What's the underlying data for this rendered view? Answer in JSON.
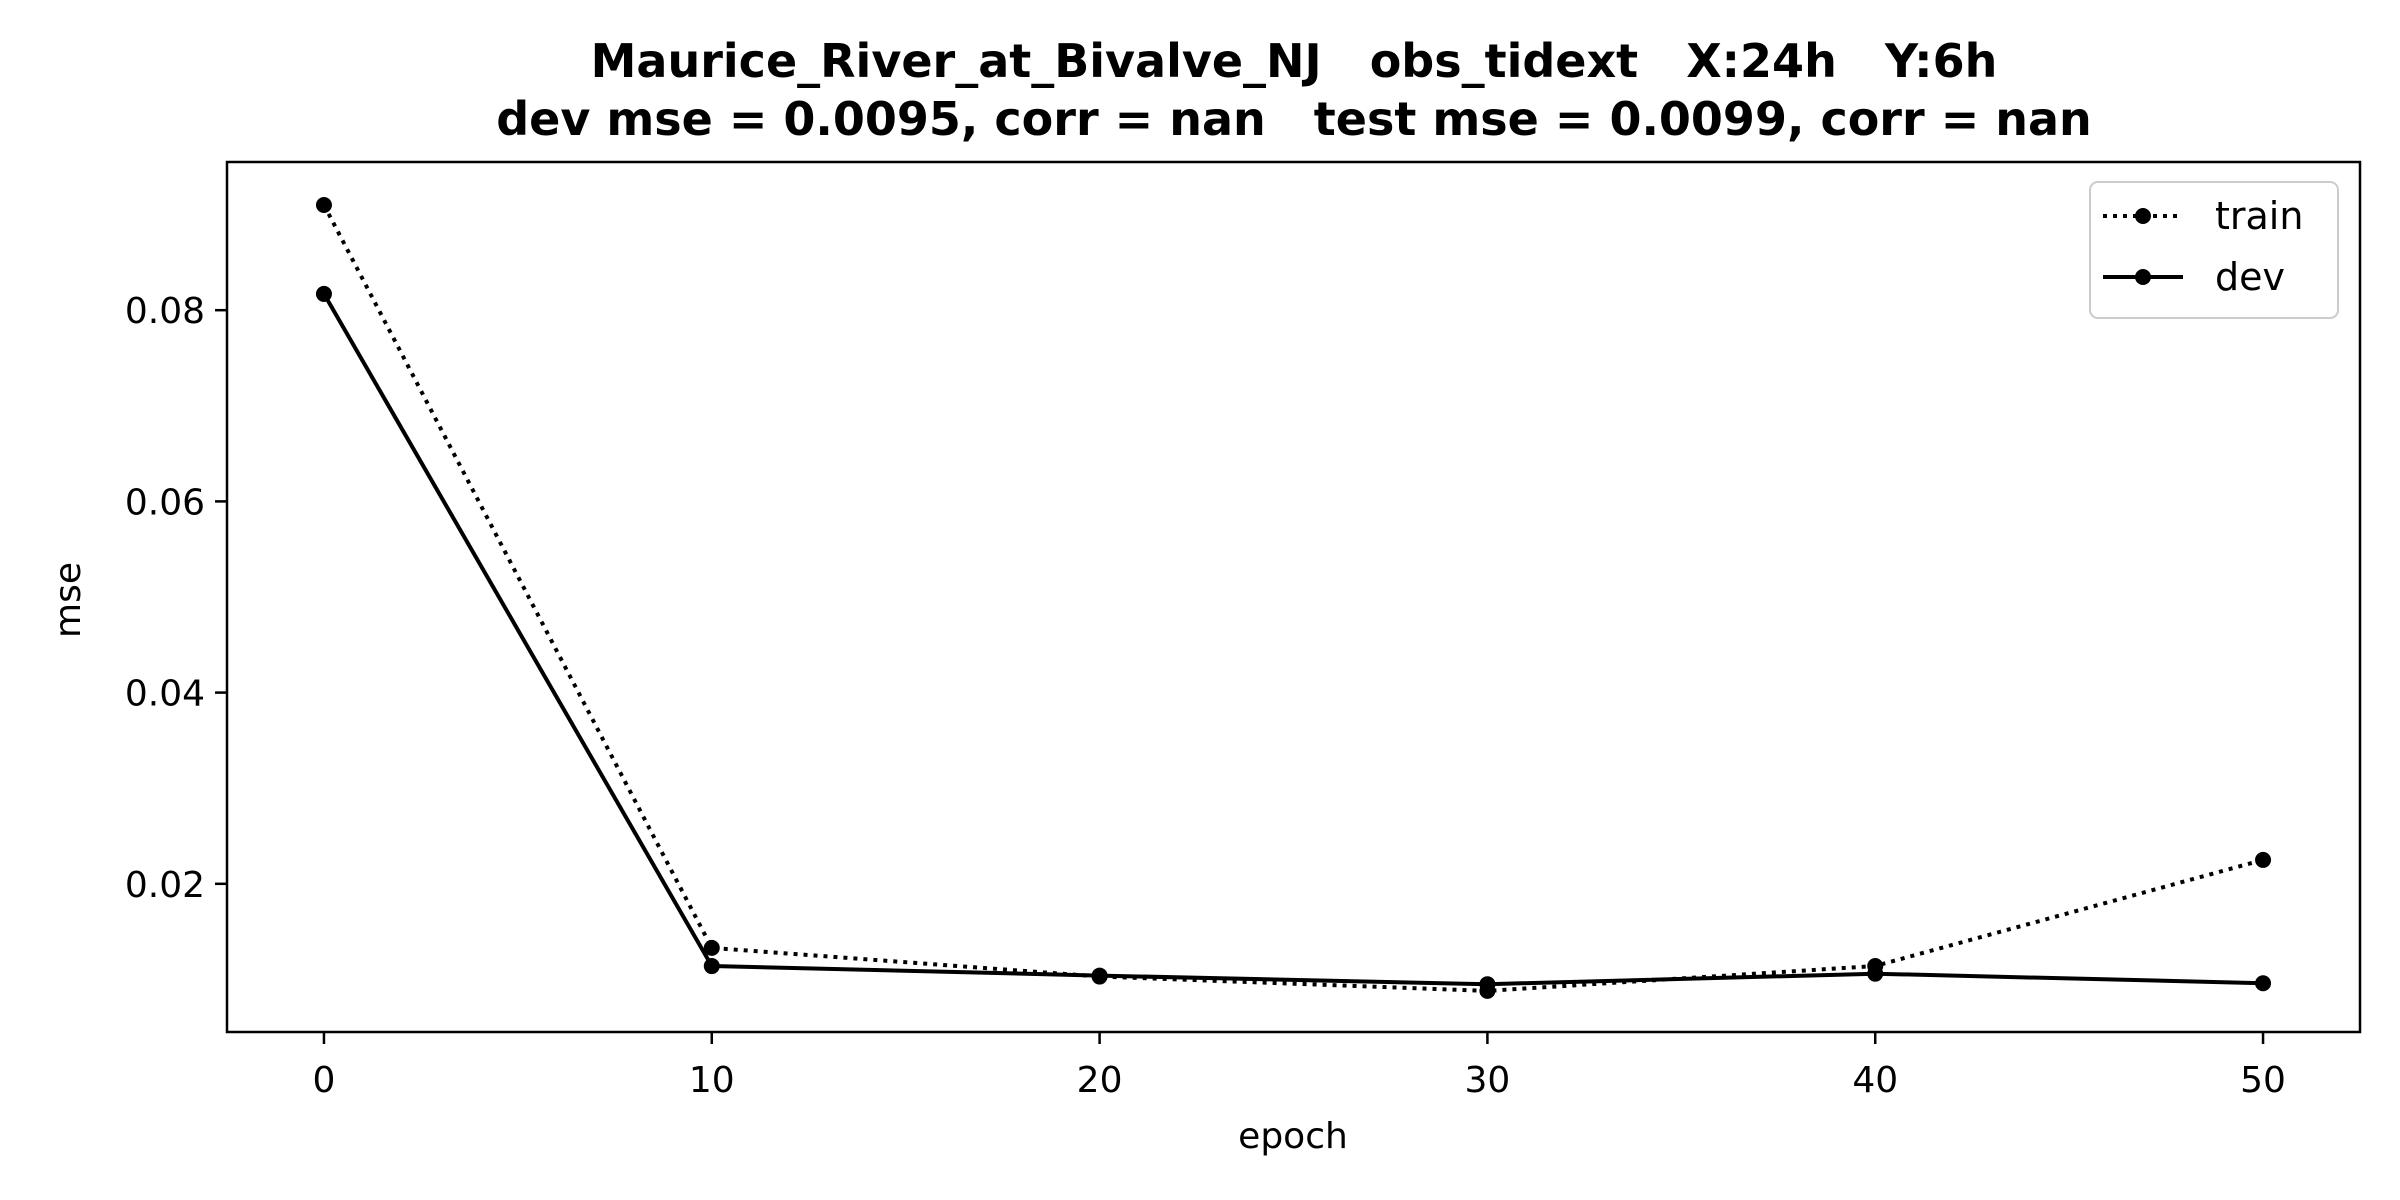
{
  "chart_data": {
    "type": "line",
    "title": "Maurice_River_at_Bivalve_NJ   obs_tidext   X:24h   Y:6h",
    "subtitle": "dev mse = 0.0095, corr = nan   test mse = 0.0099, corr = nan",
    "xlabel": "epoch",
    "ylabel": "mse",
    "x": [
      0,
      10,
      20,
      30,
      40,
      50
    ],
    "xlim": [
      -2.5,
      52.5
    ],
    "ylim": [
      0.0045,
      0.0955
    ],
    "xticks": [
      0,
      10,
      20,
      30,
      40,
      50
    ],
    "xtick_labels": [
      "0",
      "10",
      "20",
      "30",
      "40",
      "50"
    ],
    "yticks": [
      0.02,
      0.04,
      0.06,
      0.08
    ],
    "ytick_labels": [
      "0.02",
      "0.04",
      "0.06",
      "0.08"
    ],
    "grid": false,
    "legend_position": "top-right",
    "series": [
      {
        "name": "train",
        "style": "dotted",
        "color": "#000000",
        "values": [
          0.091,
          0.0133,
          0.0103,
          0.0088,
          0.0114,
          0.0225
        ]
      },
      {
        "name": "dev",
        "style": "solid",
        "color": "#000000",
        "values": [
          0.0817,
          0.0114,
          0.0104,
          0.0095,
          0.0106,
          0.0096
        ]
      }
    ]
  }
}
